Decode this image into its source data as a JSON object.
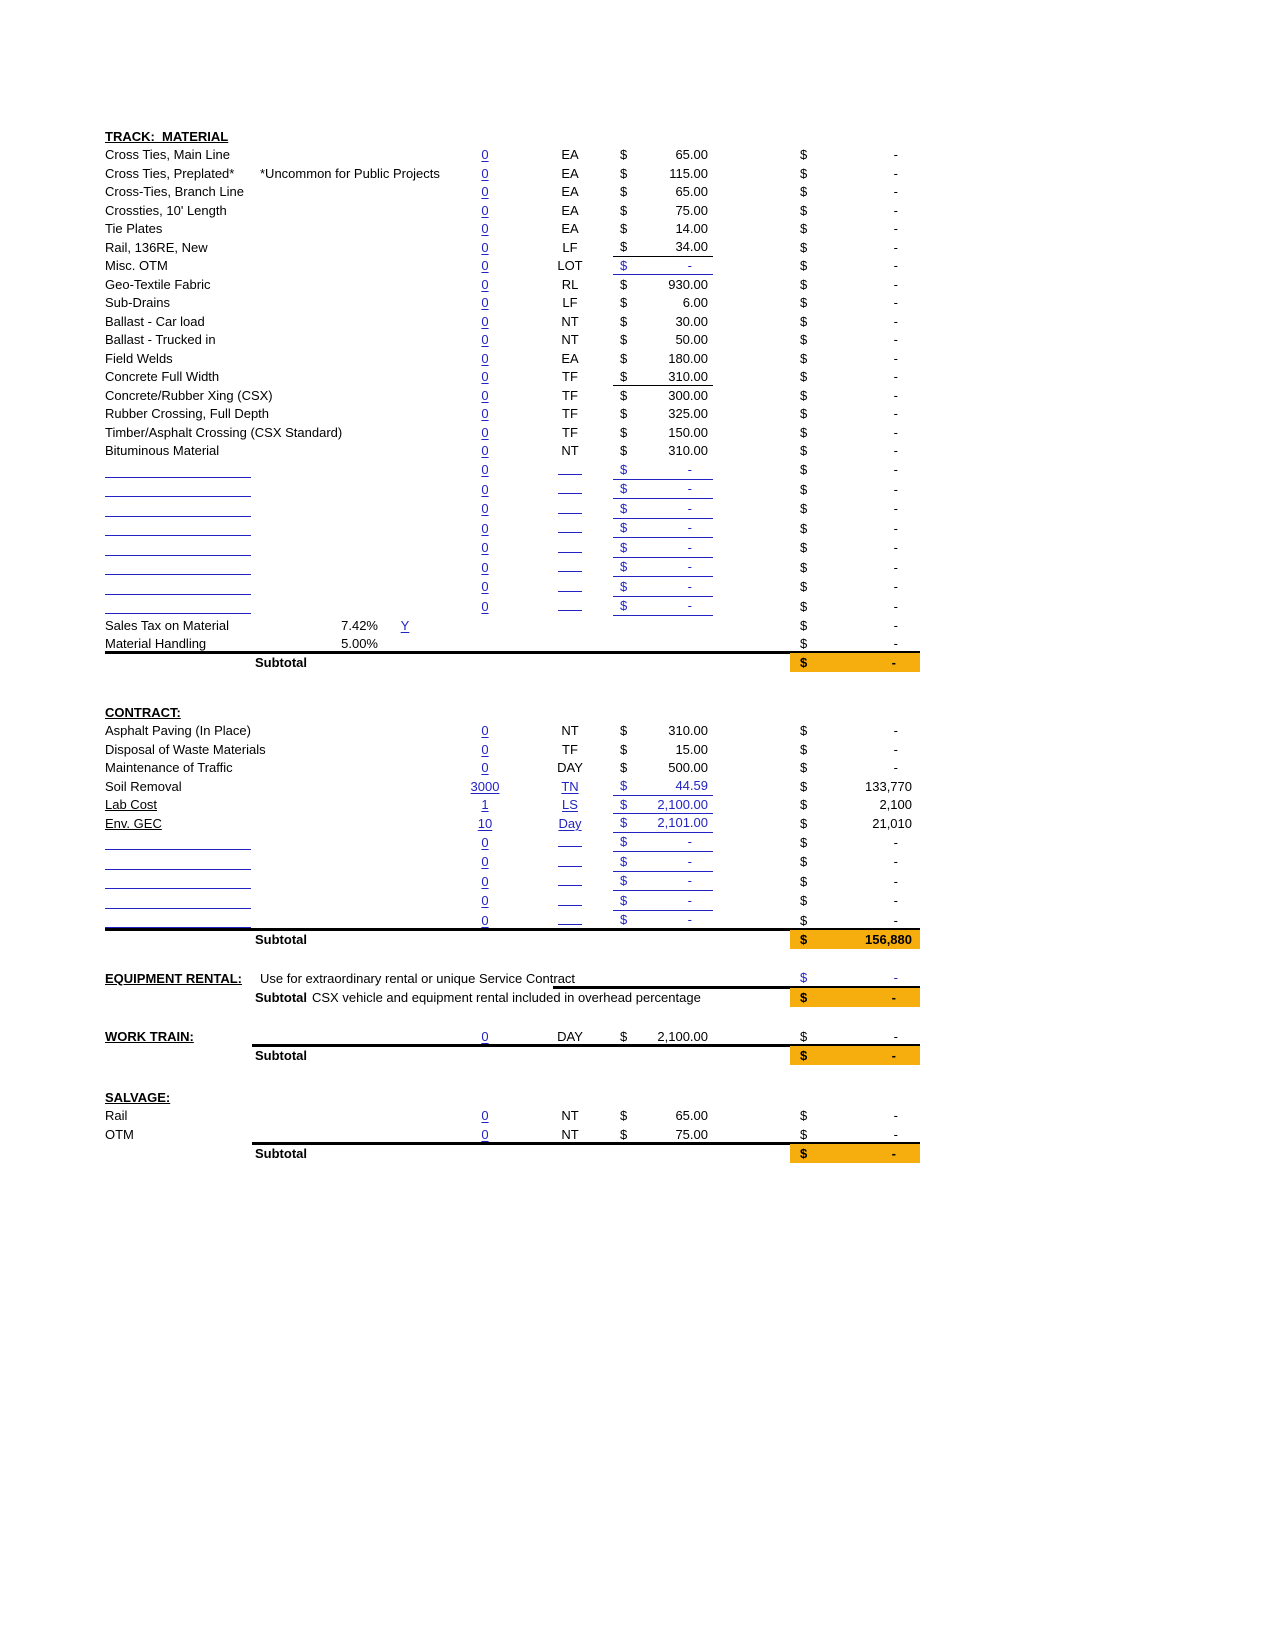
{
  "currency_symbol": "$",
  "colors": {
    "accent_orange": "#F6AE0F",
    "link_blue": "#2323C4",
    "subtotal_border": "#000000"
  },
  "sections": [
    {
      "title": "TRACK:  MATERIAL",
      "rows": [
        {
          "type": "item",
          "label": "Cross Ties, Main Line",
          "qty": "0",
          "unit": "EA",
          "price": "65.00",
          "price_style": "plain",
          "amount": "-"
        },
        {
          "type": "item",
          "label": "Cross Ties, Preplated*",
          "note": "*Uncommon for Public Projects",
          "qty": "0",
          "unit": "EA",
          "price": "115.00",
          "price_style": "plain",
          "amount": "-"
        },
        {
          "type": "item",
          "label": "Cross-Ties, Branch Line",
          "qty": "0",
          "unit": "EA",
          "price": "65.00",
          "price_style": "plain",
          "amount": "-"
        },
        {
          "type": "item",
          "label": "Crossties, 10' Length",
          "qty": "0",
          "unit": "EA",
          "price": "75.00",
          "price_style": "plain",
          "amount": "-"
        },
        {
          "type": "item",
          "label": "Tie Plates",
          "qty": "0",
          "unit": "EA",
          "price": "14.00",
          "price_style": "plain",
          "amount": "-"
        },
        {
          "type": "item",
          "label": "Rail, 136RE, New",
          "qty": "0",
          "unit": "LF",
          "price": "34.00",
          "price_style": "underline_black",
          "amount": "-"
        },
        {
          "type": "item",
          "label": "Misc. OTM",
          "qty": "0",
          "unit": "LOT",
          "price": "-",
          "price_style": "blue",
          "amount": "-"
        },
        {
          "type": "item",
          "label": "Geo-Textile Fabric",
          "qty": "0",
          "unit": "RL",
          "price": "930.00",
          "price_style": "plain",
          "amount": "-"
        },
        {
          "type": "item",
          "label": "Sub-Drains",
          "qty": "0",
          "unit": "LF",
          "price": "6.00",
          "price_style": "plain",
          "amount": "-"
        },
        {
          "type": "item",
          "label": "Ballast - Car load",
          "qty": "0",
          "unit": "NT",
          "price": "30.00",
          "price_style": "plain",
          "amount": "-"
        },
        {
          "type": "item",
          "label": "Ballast - Trucked in",
          "qty": "0",
          "unit": "NT",
          "price": "50.00",
          "price_style": "plain",
          "amount": "-"
        },
        {
          "type": "item",
          "label": "Field Welds",
          "qty": "0",
          "unit": "EA",
          "price": "180.00",
          "price_style": "plain",
          "amount": "-"
        },
        {
          "type": "item",
          "label": "Concrete Full Width",
          "qty": "0",
          "unit": "TF",
          "price": "310.00",
          "price_style": "underline_black",
          "amount": "-"
        },
        {
          "type": "item",
          "label": "Concrete/Rubber Xing (CSX)",
          "qty": "0",
          "unit": "TF",
          "price": "300.00",
          "price_style": "plain",
          "amount": "-"
        },
        {
          "type": "item",
          "label": "Rubber Crossing, Full Depth",
          "qty": "0",
          "unit": "TF",
          "price": "325.00",
          "price_style": "plain",
          "amount": "-"
        },
        {
          "type": "item",
          "label": "Timber/Asphalt Crossing (CSX Standard)",
          "qty": "0",
          "unit": "TF",
          "price": "150.00",
          "price_style": "plain",
          "amount": "-"
        },
        {
          "type": "item",
          "label": "Bituminous Material",
          "qty": "0",
          "unit": "NT",
          "price": "310.00",
          "price_style": "plain",
          "amount": "-"
        },
        {
          "type": "blank",
          "qty": "0",
          "price": "-",
          "amount": "-"
        },
        {
          "type": "blank",
          "qty": "0",
          "price": "-",
          "amount": "-"
        },
        {
          "type": "blank",
          "qty": "0",
          "price": "-",
          "amount": "-"
        },
        {
          "type": "blank",
          "qty": "0",
          "price": "-",
          "amount": "-"
        },
        {
          "type": "blank",
          "qty": "0",
          "price": "-",
          "amount": "-"
        },
        {
          "type": "blank",
          "qty": "0",
          "price": "-",
          "amount": "-"
        },
        {
          "type": "blank",
          "qty": "0",
          "price": "-",
          "amount": "-"
        },
        {
          "type": "blank",
          "qty": "0",
          "price": "-",
          "amount": "-"
        },
        {
          "type": "pct",
          "label": "Sales Tax on Material",
          "pct": "7.42%",
          "flag": "Y",
          "amount": "-"
        },
        {
          "type": "pct",
          "label": "Material Handling",
          "pct": "5.00%",
          "amount": "-"
        }
      ],
      "subtotal": {
        "label": "Subtotal",
        "value": "-"
      }
    },
    {
      "title": "CONTRACT:",
      "rows": [
        {
          "type": "item",
          "label": "Asphalt Paving (In Place)",
          "qty": "0",
          "unit": "NT",
          "price": "310.00",
          "price_style": "plain",
          "amount": "-"
        },
        {
          "type": "item",
          "label": "Disposal of Waste Materials",
          "qty": "0",
          "unit": "TF",
          "price": "15.00",
          "price_style": "plain",
          "amount": "-"
        },
        {
          "type": "item",
          "label": "Maintenance of Traffic",
          "qty": "0",
          "unit": "DAY",
          "price": "500.00",
          "price_style": "plain",
          "amount": "-"
        },
        {
          "type": "item",
          "label": "Soil Removal",
          "qty": "3000",
          "unit": "TN",
          "unit_blue": true,
          "price": "44.59",
          "price_style": "blue",
          "amount": "133,770"
        },
        {
          "type": "item",
          "label": "Lab Cost",
          "label_underline": true,
          "qty": "1",
          "unit": "LS",
          "unit_blue": true,
          "price": "2,100.00",
          "price_style": "blue",
          "amount": "2,100"
        },
        {
          "type": "item",
          "label": "Env. GEC",
          "label_underline": true,
          "qty": "10",
          "unit": "Day",
          "unit_blue": true,
          "price": "2,101.00",
          "price_style": "blue",
          "amount": "21,010"
        },
        {
          "type": "blank",
          "qty": "0",
          "price": "-",
          "amount": "-"
        },
        {
          "type": "blank",
          "qty": "0",
          "price": "-",
          "amount": "-"
        },
        {
          "type": "blank",
          "qty": "0",
          "price": "-",
          "amount": "-"
        },
        {
          "type": "blank",
          "qty": "0",
          "price": "-",
          "amount": "-"
        },
        {
          "type": "blank",
          "qty": "0",
          "price": "-",
          "amount": "-"
        }
      ],
      "subtotal": {
        "label": "Subtotal",
        "value": "156,880"
      }
    },
    {
      "title": "EQUIPMENT RENTAL:",
      "kind": "note_section",
      "note": "Use for extraordinary rental or unique Service Contract",
      "amount": "-",
      "subtotal": {
        "label": "Subtotal",
        "note": "CSX vehicle and equipment rental included in overhead percentage",
        "value": "-"
      }
    },
    {
      "title": "WORK TRAIN:",
      "kind": "inline_section",
      "row": {
        "qty": "0",
        "unit": "DAY",
        "price": "2,100.00",
        "price_style": "plain",
        "amount": "-"
      },
      "subtotal": {
        "label": "Subtotal",
        "value": "-"
      }
    },
    {
      "title": "SALVAGE:",
      "rows": [
        {
          "type": "item",
          "label": "Rail",
          "qty": "0",
          "unit": "NT",
          "price": "65.00",
          "price_style": "plain",
          "amount": "-"
        },
        {
          "type": "item",
          "label": "OTM",
          "qty": "0",
          "unit": "NT",
          "price": "75.00",
          "price_style": "plain",
          "amount": "-"
        }
      ],
      "subtotal": {
        "label": "Subtotal",
        "value": "-"
      }
    }
  ]
}
